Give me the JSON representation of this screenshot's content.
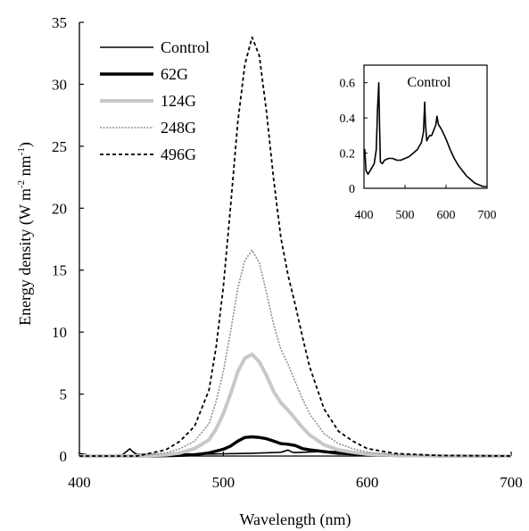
{
  "chart_data": [
    {
      "type": "line",
      "xlabel": "Wavelength (nm)",
      "ylabel_main": "Energy density (W m",
      "ylabel_sup1": "-2",
      "ylabel_mid": " nm",
      "ylabel_sup2": "-1",
      "ylabel_end": ")",
      "xlim": [
        400,
        700
      ],
      "ylim": [
        0,
        35
      ],
      "xticks": [
        "400",
        "500",
        "600",
        "700"
      ],
      "yticks": [
        "0",
        "5",
        "10",
        "15",
        "20",
        "25",
        "30",
        "35"
      ],
      "grid": false,
      "legend_position": "top-left",
      "series": [
        {
          "name": "Control",
          "style": "solid-thin",
          "color": "#000000",
          "x": [
            400,
            405,
            410,
            420,
            430,
            435,
            437,
            440,
            450,
            470,
            490,
            500,
            520,
            540,
            545,
            548,
            550,
            555,
            560,
            570,
            580,
            590,
            600,
            620,
            650,
            680,
            700
          ],
          "y": [
            0.2,
            0.1,
            0.05,
            0.08,
            0.1,
            0.58,
            0.35,
            0.12,
            0.15,
            0.17,
            0.16,
            0.18,
            0.22,
            0.3,
            0.48,
            0.3,
            0.28,
            0.3,
            0.33,
            0.38,
            0.35,
            0.28,
            0.22,
            0.14,
            0.07,
            0.04,
            0.03
          ]
        },
        {
          "name": "62G",
          "style": "solid-thick",
          "color": "#000000",
          "x": [
            400,
            420,
            440,
            460,
            470,
            480,
            490,
            500,
            505,
            510,
            515,
            520,
            525,
            530,
            535,
            540,
            545,
            550,
            555,
            560,
            570,
            580,
            600,
            620,
            650,
            700
          ],
          "y": [
            0,
            0,
            0,
            0.02,
            0.05,
            0.1,
            0.25,
            0.55,
            0.8,
            1.2,
            1.5,
            1.55,
            1.5,
            1.4,
            1.2,
            1.0,
            0.95,
            0.85,
            0.6,
            0.5,
            0.35,
            0.22,
            0.1,
            0.04,
            0.01,
            0
          ]
        },
        {
          "name": "124G",
          "style": "solid-gray",
          "color": "#c8c8c8",
          "x": [
            400,
            420,
            440,
            460,
            470,
            480,
            490,
            495,
            500,
            505,
            510,
            515,
            520,
            525,
            530,
            535,
            540,
            545,
            550,
            555,
            560,
            570,
            580,
            590,
            600,
            620,
            650,
            700
          ],
          "y": [
            0,
            0,
            0,
            0.1,
            0.25,
            0.6,
            1.3,
            2.2,
            3.4,
            5.0,
            6.8,
            7.9,
            8.2,
            7.6,
            6.5,
            5.2,
            4.3,
            3.7,
            3.0,
            2.3,
            1.7,
            0.9,
            0.5,
            0.3,
            0.15,
            0.05,
            0.01,
            0
          ]
        },
        {
          "name": "248G",
          "style": "dotted-gray",
          "color": "#909090",
          "x": [
            400,
            420,
            440,
            460,
            470,
            480,
            490,
            495,
            500,
            505,
            510,
            515,
            520,
            525,
            530,
            535,
            540,
            545,
            550,
            555,
            560,
            570,
            580,
            590,
            600,
            620,
            650,
            700
          ],
          "y": [
            0,
            0,
            0,
            0.25,
            0.6,
            1.2,
            2.6,
            4.4,
            6.8,
            10.0,
            13.5,
            15.8,
            16.6,
            15.6,
            13.2,
            10.6,
            8.6,
            7.4,
            6.0,
            4.6,
            3.4,
            1.8,
            1.0,
            0.6,
            0.3,
            0.1,
            0.02,
            0
          ]
        },
        {
          "name": "496G",
          "style": "dashed",
          "color": "#000000",
          "x": [
            400,
            420,
            440,
            460,
            470,
            480,
            490,
            495,
            500,
            505,
            510,
            515,
            520,
            525,
            530,
            535,
            540,
            545,
            550,
            555,
            560,
            570,
            580,
            590,
            600,
            620,
            650,
            700
          ],
          "y": [
            0,
            0,
            0,
            0.5,
            1.2,
            2.4,
            5.3,
            8.8,
            13.6,
            20.1,
            26.9,
            31.6,
            33.8,
            32.3,
            27.8,
            22.3,
            17.6,
            14.6,
            12.2,
            9.6,
            7.2,
            3.8,
            2.0,
            1.2,
            0.6,
            0.2,
            0.04,
            0
          ]
        }
      ]
    },
    {
      "type": "line",
      "title": "Control",
      "xlim": [
        400,
        700
      ],
      "ylim": [
        0,
        0.7
      ],
      "xticks": [
        "400",
        "500",
        "600",
        "700"
      ],
      "yticks": [
        "0",
        "0.2",
        "0.4",
        "0.6"
      ],
      "series": [
        {
          "name": "Control",
          "color": "#000000",
          "x": [
            400,
            402,
            405,
            410,
            415,
            420,
            425,
            430,
            433,
            436,
            438,
            440,
            445,
            450,
            460,
            470,
            480,
            490,
            500,
            510,
            520,
            530,
            540,
            545,
            548,
            550,
            553,
            555,
            560,
            565,
            570,
            575,
            578,
            580,
            582,
            585,
            590,
            600,
            610,
            620,
            630,
            640,
            650,
            660,
            670,
            680,
            690,
            700
          ],
          "y": [
            0.2,
            0.22,
            0.1,
            0.08,
            0.1,
            0.12,
            0.14,
            0.22,
            0.45,
            0.6,
            0.35,
            0.15,
            0.14,
            0.16,
            0.17,
            0.17,
            0.16,
            0.16,
            0.17,
            0.18,
            0.2,
            0.22,
            0.26,
            0.32,
            0.49,
            0.36,
            0.27,
            0.28,
            0.3,
            0.3,
            0.33,
            0.36,
            0.41,
            0.38,
            0.36,
            0.35,
            0.33,
            0.28,
            0.22,
            0.17,
            0.13,
            0.1,
            0.07,
            0.05,
            0.03,
            0.02,
            0.01,
            0.01
          ]
        }
      ]
    }
  ]
}
